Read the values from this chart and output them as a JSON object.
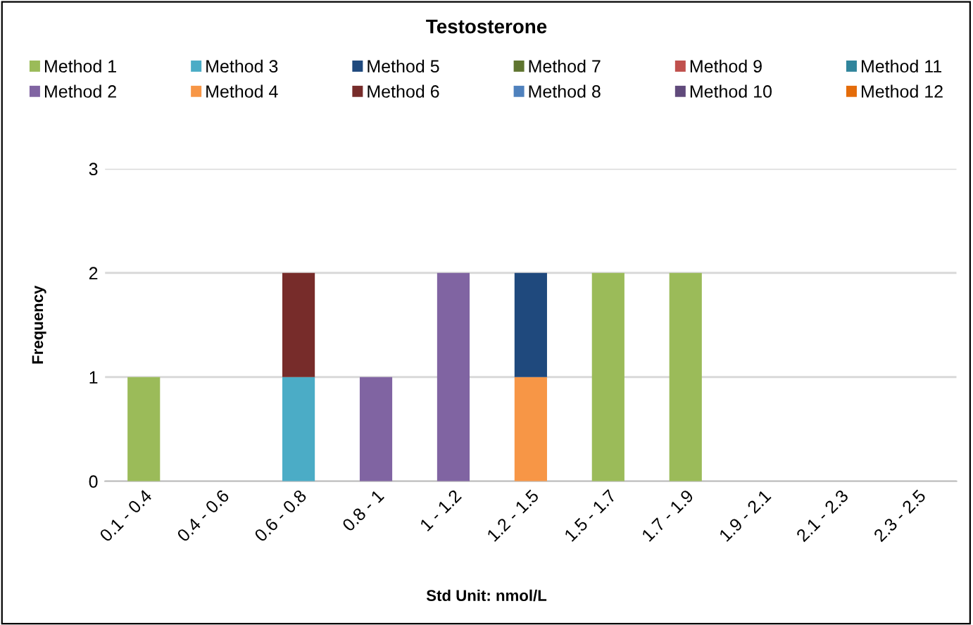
{
  "chart_data": {
    "type": "bar",
    "title": "Testosterone",
    "xlabel": "Std Unit: nmol/L",
    "ylabel": "Frequency",
    "categories": [
      "0.1 - 0.4",
      "0.4 - 0.6",
      "0.6 - 0.8",
      "0.8 - 1",
      "1 - 1.2",
      "1.2 - 1.5",
      "1.5 - 1.7",
      "1.7 - 1.9",
      "1.9 - 2.1",
      "2.1 - 2.3",
      "2.3 - 2.5"
    ],
    "stacked": true,
    "ylim": [
      0,
      3
    ],
    "yticks": [
      0,
      1,
      2,
      3
    ],
    "grid": "y",
    "legend": "top",
    "series": [
      {
        "name": "Method 1",
        "color": "#9bbb59",
        "values": [
          1,
          0,
          0,
          0,
          0,
          0,
          2,
          2,
          0,
          0,
          0
        ]
      },
      {
        "name": "Method 2",
        "color": "#8064a2",
        "values": [
          0,
          0,
          0,
          1,
          2,
          0,
          0,
          0,
          0,
          0,
          0
        ]
      },
      {
        "name": "Method 3",
        "color": "#4bacc6",
        "values": [
          0,
          0,
          1,
          0,
          0,
          0,
          0,
          0,
          0,
          0,
          0
        ]
      },
      {
        "name": "Method 4",
        "color": "#f79646",
        "values": [
          0,
          0,
          0,
          0,
          0,
          1,
          0,
          0,
          0,
          0,
          0
        ]
      },
      {
        "name": "Method 5",
        "color": "#1f497d",
        "values": [
          0,
          0,
          0,
          0,
          0,
          1,
          0,
          0,
          0,
          0,
          0
        ]
      },
      {
        "name": "Method 6",
        "color": "#772c2a",
        "values": [
          0,
          0,
          1,
          0,
          0,
          0,
          0,
          0,
          0,
          0,
          0
        ]
      },
      {
        "name": "Method 7",
        "color": "#5f7530",
        "values": [
          0,
          0,
          0,
          0,
          0,
          0,
          0,
          0,
          0,
          0,
          0
        ]
      },
      {
        "name": "Method 8",
        "color": "#4f81bd",
        "values": [
          0,
          0,
          0,
          0,
          0,
          0,
          0,
          0,
          0,
          0,
          0
        ]
      },
      {
        "name": "Method 9",
        "color": "#c0504d",
        "values": [
          0,
          0,
          0,
          0,
          0,
          0,
          0,
          0,
          0,
          0,
          0
        ]
      },
      {
        "name": "Method 10",
        "color": "#604a7b",
        "values": [
          0,
          0,
          0,
          0,
          0,
          0,
          0,
          0,
          0,
          0,
          0
        ]
      },
      {
        "name": "Method 11",
        "color": "#31859c",
        "values": [
          0,
          0,
          0,
          0,
          0,
          0,
          0,
          0,
          0,
          0,
          0
        ]
      },
      {
        "name": "Method 12",
        "color": "#e46c0a",
        "values": [
          0,
          0,
          0,
          0,
          0,
          0,
          0,
          0,
          0,
          0,
          0
        ]
      }
    ]
  }
}
